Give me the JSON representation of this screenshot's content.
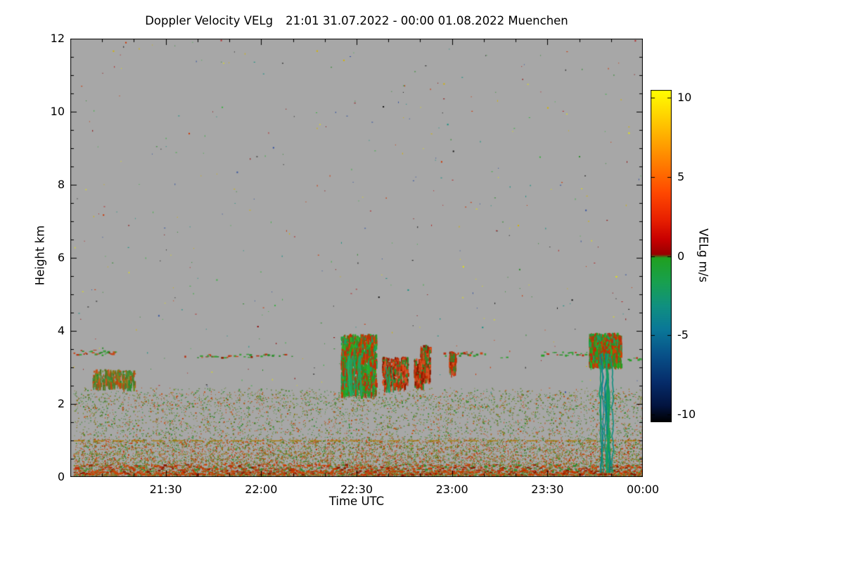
{
  "chart_data": {
    "type": "heatmap",
    "title": "Doppler Velocity VELg",
    "subtitle": "21:01 31.07.2022 - 00:00 01.08.2022 Muenchen",
    "xlabel": "Time UTC",
    "ylabel": "Height km",
    "x_domain_minutes_from_2100": [
      0,
      180
    ],
    "x_ticks": [
      {
        "label": "21:30",
        "t": 30
      },
      {
        "label": "22:00",
        "t": 60
      },
      {
        "label": "22:30",
        "t": 90
      },
      {
        "label": "23:00",
        "t": 120
      },
      {
        "label": "23:30",
        "t": 150
      },
      {
        "label": "00:00",
        "t": 180
      }
    ],
    "x_minor_tick_minutes": 10,
    "y_domain_km": [
      0,
      12
    ],
    "y_ticks": [
      {
        "label": "0",
        "h": 0
      },
      {
        "label": "2",
        "h": 2
      },
      {
        "label": "4",
        "h": 4
      },
      {
        "label": "6",
        "h": 6
      },
      {
        "label": "8",
        "h": 8
      },
      {
        "label": "10",
        "h": 10
      },
      {
        "label": "12",
        "h": 12
      }
    ],
    "y_minor_tick_km": 0.5,
    "background_color": "#a7a7a7",
    "colorbar": {
      "label": "VELg m/s",
      "range": [
        -10.5,
        10.5
      ],
      "ticks": [
        {
          "label": "10",
          "v": 10
        },
        {
          "label": "5",
          "v": 5
        },
        {
          "label": "0",
          "v": 0
        },
        {
          "label": "-5",
          "v": -5
        },
        {
          "label": "-10",
          "v": -10
        }
      ],
      "stops": [
        {
          "p": 0.0,
          "c": "#ffff00"
        },
        {
          "p": 0.07,
          "c": "#ffd800"
        },
        {
          "p": 0.15,
          "c": "#ffa800"
        },
        {
          "p": 0.23,
          "c": "#ff7800"
        },
        {
          "p": 0.31,
          "c": "#ff4800"
        },
        {
          "p": 0.39,
          "c": "#e82000"
        },
        {
          "p": 0.45,
          "c": "#c80000"
        },
        {
          "p": 0.495,
          "c": "#980000"
        },
        {
          "p": 0.505,
          "c": "#20a020"
        },
        {
          "p": 0.58,
          "c": "#18a050"
        },
        {
          "p": 0.65,
          "c": "#109080"
        },
        {
          "p": 0.72,
          "c": "#0a7898"
        },
        {
          "p": 0.8,
          "c": "#085088"
        },
        {
          "p": 0.88,
          "c": "#062c6a"
        },
        {
          "p": 0.95,
          "c": "#031440"
        },
        {
          "p": 1.0,
          "c": "#000000"
        }
      ]
    },
    "palettes": {
      "noise": [
        "#b22222",
        "#2e8b2e",
        "#d4b400",
        "#101010",
        "#0f8f80",
        "#cc3300",
        "#e8e800",
        "#2f4f9f",
        "#8b0000",
        "#3cb043"
      ],
      "bl": [
        "#56792a",
        "#6b8e23",
        "#3f8f3f",
        "#b84a10",
        "#2e8b2e",
        "#8a7a1a",
        "#c8551a",
        "#4f7a28"
      ],
      "bl2": [
        "#b84a10",
        "#c8551a",
        "#6b8e23",
        "#9a6a10",
        "#4f7a28",
        "#c03000"
      ],
      "surf": [
        "#c03000",
        "#b83010",
        "#8b1a00",
        "#d04000",
        "#2e8b2e",
        "#b84a10"
      ],
      "surf2": [
        "#d04000",
        "#c03000",
        "#b84a10",
        "#8b1a00"
      ],
      "cloud": [
        "#b83010",
        "#2e8b2e",
        "#c84818",
        "#3f9f3f",
        "#8b2500",
        "#35a035"
      ],
      "cloudg": [
        "#2e8b2e",
        "#3f9f3f",
        "#35a035",
        "#b83010",
        "#28a028"
      ],
      "cell": [
        "#22a022",
        "#2e8b2e",
        "#c03000",
        "#18a060",
        "#d04000",
        "#28b028",
        "#b83010"
      ],
      "cellr": [
        "#c03000",
        "#b83010",
        "#d85020",
        "#2e8b2e",
        "#8b1a00"
      ],
      "virga": [
        "#22a060",
        "#18a070",
        "#2e8b2e",
        "#20b060"
      ],
      "precip": [
        "#109868",
        "#0f8f80",
        "#18a060",
        "#0a7a90",
        "#22a050",
        "#0d8a78"
      ]
    },
    "features": [
      {
        "kind": "speckle",
        "desc": "sparse multicolor noise pixels above boundary layer",
        "t0": 1,
        "t1": 180,
        "h0": 2.3,
        "h1": 12,
        "count": 420,
        "palette": "noise"
      },
      {
        "kind": "speckle",
        "desc": "green speckle band near 2 km",
        "t0": 1,
        "t1": 180,
        "h0": 1.85,
        "h1": 2.45,
        "count": 900,
        "palette": "bl"
      },
      {
        "kind": "speckle",
        "desc": "boundary layer clutter densest near ground",
        "t0": 1,
        "t1": 180,
        "h0": 0.05,
        "h1": 2.3,
        "count": 9000,
        "palette": "bl",
        "bias": 2.0
      },
      {
        "kind": "speckle",
        "desc": "low level clutter",
        "t0": 1,
        "t1": 180,
        "h0": 0.05,
        "h1": 1.05,
        "count": 5200,
        "palette": "bl2",
        "bias": 1.4
      },
      {
        "kind": "band",
        "desc": "near-surface echo layer",
        "t0": 1,
        "t1": 180,
        "h": 0.26,
        "thick": 0.2,
        "density": 0.92,
        "palette": "surf"
      },
      {
        "kind": "band",
        "desc": "surface echo",
        "t0": 1,
        "t1": 180,
        "h": 0.12,
        "thick": 0.1,
        "density": 0.85,
        "palette": "surf2"
      },
      {
        "kind": "hline",
        "desc": "intermittent echo line at 1.0 km",
        "t0": 1,
        "t1": 180,
        "h": 1.0,
        "color": "#a97d10",
        "dash": [
          16,
          12
        ],
        "width": 1.5
      },
      {
        "kind": "hline",
        "desc": "faint echo line at 0.64 km",
        "t0": 1,
        "t1": 95,
        "h": 0.64,
        "color": "#a07a18",
        "dash": [
          8,
          22
        ],
        "width": 1
      },
      {
        "kind": "band",
        "desc": "cloud layer 21:01-21:14 at 3.4 km",
        "t0": 1,
        "t1": 14,
        "h": 3.42,
        "thick": 0.14,
        "density": 0.85,
        "palette": "cloud"
      },
      {
        "kind": "blob",
        "desc": "speckle patch below cloud 21:07-21:20",
        "t0": 7,
        "t1": 20,
        "h0": 2.5,
        "h1": 2.95,
        "count": 260,
        "palette": "bl"
      },
      {
        "kind": "band",
        "desc": "thin cloud band 21:35-22:02 at 3.33 km",
        "t0": 35,
        "t1": 62,
        "h": 3.33,
        "thick": 0.1,
        "density": 0.5,
        "palette": "cloud"
      },
      {
        "kind": "band",
        "desc": "faint cloud bits 22:02-22:10",
        "t0": 62,
        "t1": 70,
        "h": 3.35,
        "thick": 0.07,
        "density": 0.25,
        "palette": "cloudg"
      },
      {
        "kind": "blob",
        "desc": "convective cloud cells 22:25-22:36 between 2.3-3.9 km",
        "t0": 85,
        "t1": 96,
        "h0": 2.3,
        "h1": 3.92,
        "count": 1500,
        "palette": "cell"
      },
      {
        "kind": "shaft",
        "desc": "virga streaks under 22:30 cell",
        "t0": 87,
        "t1": 91,
        "h0": 2.15,
        "h1": 3.3,
        "strands": 7,
        "palette": "virga"
      },
      {
        "kind": "blob",
        "desc": "cells 22:38-22:46 at 2.5-3.3 km",
        "t0": 98,
        "t1": 106,
        "h0": 2.5,
        "h1": 3.3,
        "count": 380,
        "palette": "cellr"
      },
      {
        "kind": "shaft",
        "desc": "virga 22:39-22:43",
        "t0": 99,
        "t1": 103,
        "h0": 2.3,
        "h1": 3.0,
        "strands": 4,
        "palette": "virga"
      },
      {
        "kind": "blob",
        "desc": "red streak 22:48-22:51",
        "t0": 108,
        "t1": 111,
        "h0": 2.55,
        "h1": 3.25,
        "count": 180,
        "palette": "cellr"
      },
      {
        "kind": "blob",
        "desc": "red streak 22:50-22:53",
        "t0": 110,
        "t1": 113,
        "h0": 2.7,
        "h1": 3.62,
        "count": 220,
        "palette": "cellr"
      },
      {
        "kind": "band",
        "desc": "cloud band 22:56-23:11 at 3.38 km",
        "t0": 116,
        "t1": 131,
        "h": 3.38,
        "thick": 0.12,
        "density": 0.55,
        "palette": "cloud"
      },
      {
        "kind": "blob",
        "desc": "red streak near 23:00",
        "t0": 119,
        "t1": 121,
        "h0": 2.9,
        "h1": 3.45,
        "count": 120,
        "palette": "cellr"
      },
      {
        "kind": "band",
        "desc": "cloud bits 23:13-23:17",
        "t0": 133,
        "t1": 137,
        "h": 3.3,
        "thick": 0.07,
        "density": 0.3,
        "palette": "cloudg"
      },
      {
        "kind": "band",
        "desc": "green cloud band 23:28-23:46 at 3.4 km",
        "t0": 148,
        "t1": 166,
        "h": 3.4,
        "thick": 0.12,
        "density": 0.75,
        "palette": "cloudg"
      },
      {
        "kind": "blob",
        "desc": "cloud cell 23:43-23:53 at 3.1-3.95 km",
        "t0": 163,
        "t1": 173,
        "h0": 3.1,
        "h1": 3.95,
        "count": 1300,
        "palette": "cell"
      },
      {
        "kind": "shaft",
        "desc": "precipitation shaft 23:46-23:51 reaching ground",
        "t0": 166,
        "t1": 171,
        "h0": 0.08,
        "h1": 3.35,
        "strands": 10,
        "palette": "precip"
      },
      {
        "kind": "band",
        "desc": "cloud band 23:53-00:00 at 3.25 km",
        "t0": 173,
        "t1": 180,
        "h": 3.25,
        "thick": 0.08,
        "density": 0.45,
        "palette": "cloudg"
      }
    ]
  }
}
